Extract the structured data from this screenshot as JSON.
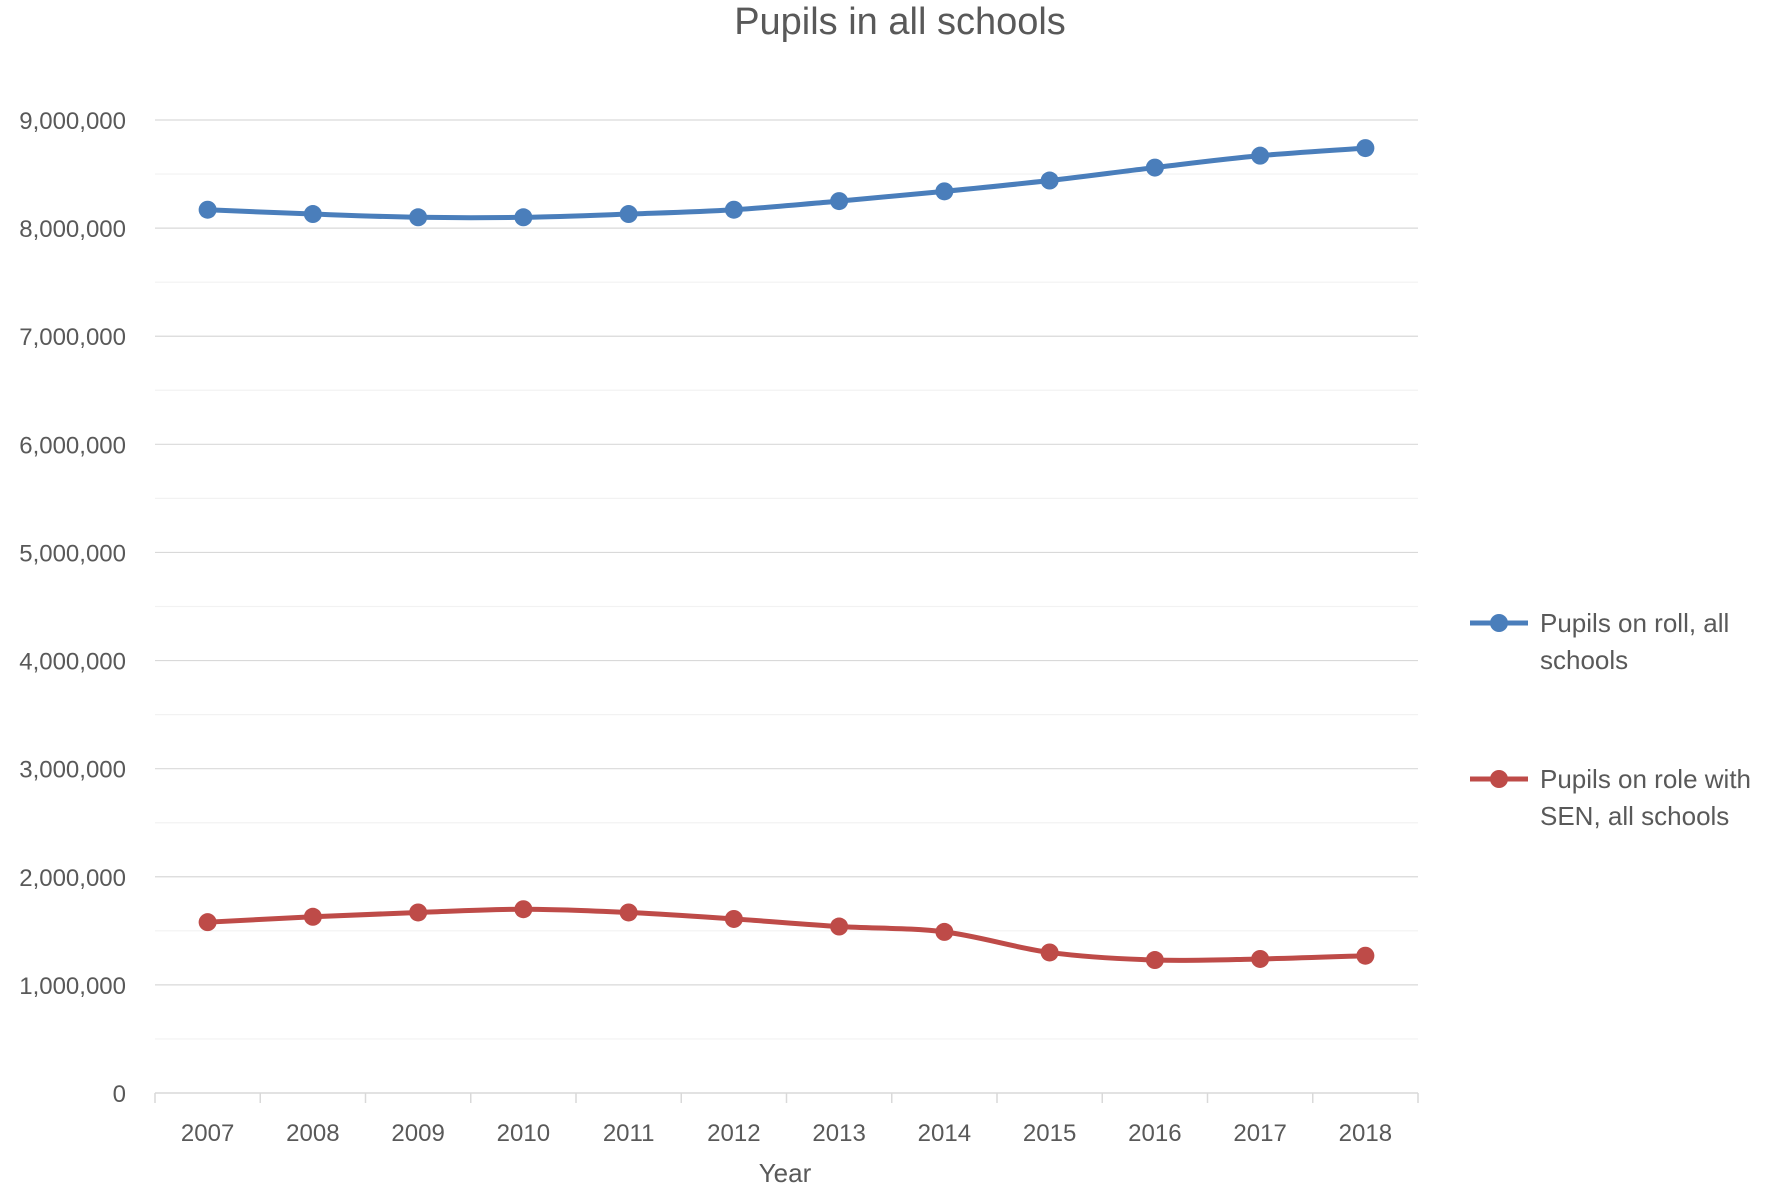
{
  "chart_data": {
    "type": "line",
    "title": "Pupils in all schools",
    "xlabel": "Year",
    "ylabel": "",
    "categories": [
      "2007",
      "2008",
      "2009",
      "2010",
      "2011",
      "2012",
      "2013",
      "2014",
      "2015",
      "2016",
      "2017",
      "2018"
    ],
    "ylim": [
      0,
      9000000
    ],
    "yticks": [
      0,
      1000000,
      2000000,
      3000000,
      4000000,
      5000000,
      6000000,
      7000000,
      8000000,
      9000000
    ],
    "ytick_labels": [
      "0",
      "1,000,000",
      "2,000,000",
      "3,000,000",
      "4,000,000",
      "5,000,000",
      "6,000,000",
      "7,000,000",
      "8,000,000",
      "9,000,000"
    ],
    "grid": true,
    "legend_position": "right",
    "series": [
      {
        "name": "Pupils on roll, all schools",
        "legend_lines": [
          "Pupils on roll, all",
          "schools"
        ],
        "color": "#4A7EBB",
        "values": [
          8170000,
          8130000,
          8100000,
          8100000,
          8130000,
          8170000,
          8250000,
          8340000,
          8440000,
          8560000,
          8670000,
          8740000
        ]
      },
      {
        "name": "Pupils on role with SEN, all schools",
        "legend_lines": [
          "Pupils on role with",
          "SEN, all schools"
        ],
        "color": "#BE4B48",
        "values": [
          1580000,
          1630000,
          1670000,
          1700000,
          1670000,
          1610000,
          1540000,
          1490000,
          1300000,
          1230000,
          1240000,
          1270000
        ]
      }
    ]
  },
  "colors": {
    "axis": "#D9D9D9",
    "grid": "#D9D9D9",
    "minor_grid": "#F2F2F2",
    "text": "#595959"
  }
}
